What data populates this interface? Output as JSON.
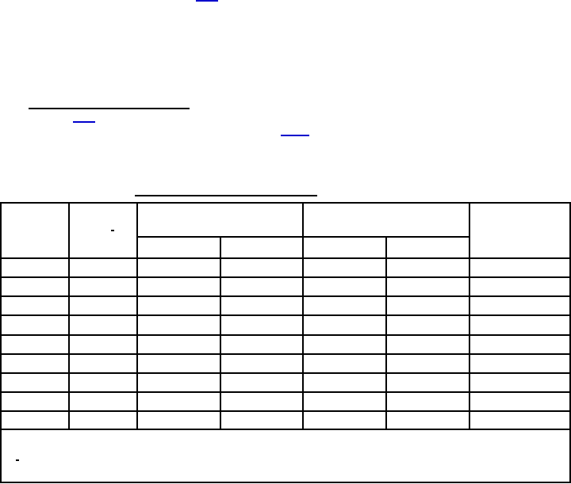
{
  "document": {
    "colors": {
      "link_underline": "#0000cc",
      "rule": "#000000",
      "background": "#ffffff"
    },
    "table": {
      "header_top_groups": 2,
      "sub_columns": 4,
      "body_rows": 9
    }
  }
}
